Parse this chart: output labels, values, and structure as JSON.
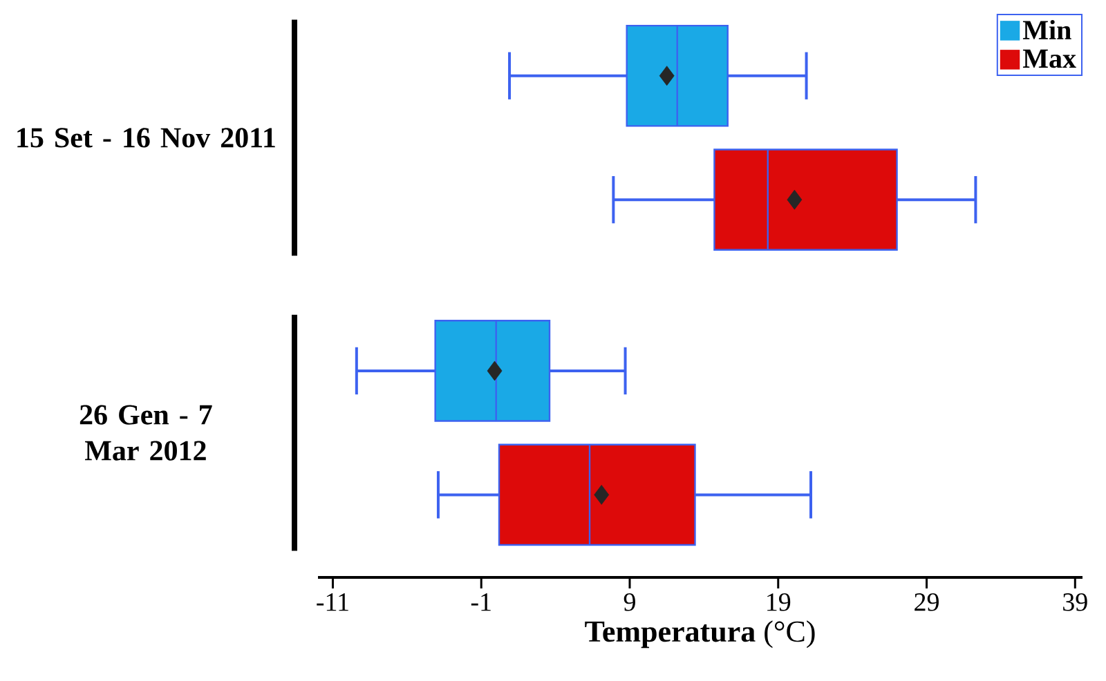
{
  "chart_data": {
    "type": "box",
    "orientation": "horizontal",
    "categories": [
      "15 Set - 16 Nov 2011",
      "26 Gen - 7 Mar 2012"
    ],
    "xlabel": "**Temperatura** (°C)",
    "xlim": [
      -12,
      39.5
    ],
    "xticks": [
      -11,
      -1,
      9,
      19,
      29,
      39
    ],
    "legend": "top right",
    "marker": "diamond",
    "series": [
      {
        "name": "Min",
        "color": "#1aa9e6",
        "boxes": [
          {
            "low": 0.9,
            "q1": 8.8,
            "median": 12.2,
            "q3": 15.6,
            "high": 20.9,
            "mean": 11.5
          },
          {
            "low": -9.4,
            "q1": -4.1,
            "median": 0.0,
            "q3": 3.6,
            "high": 8.7,
            "mean": -0.1
          }
        ]
      },
      {
        "name": "Max",
        "color": "#dd0a0a",
        "boxes": [
          {
            "low": 7.9,
            "q1": 14.7,
            "median": 18.3,
            "q3": 27.0,
            "high": 32.3,
            "mean": 20.1
          },
          {
            "low": -3.9,
            "q1": 0.2,
            "median": 6.3,
            "q3": 13.4,
            "high": 21.2,
            "mean": 7.1
          }
        ]
      }
    ]
  }
}
